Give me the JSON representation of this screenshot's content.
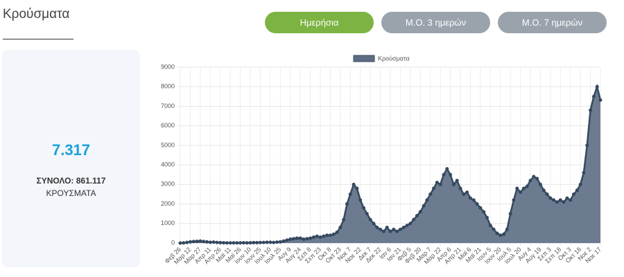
{
  "header": {
    "title": "Κρούσματα"
  },
  "buttons": [
    "Ημερήσια",
    "Μ.Ο. 3 ημερών",
    "Μ.Ο. 7 ημερών"
  ],
  "summary": {
    "value": "7.317",
    "total": "ΣΥΝΟΛΟ: 861.117",
    "label": "ΚΡΟΥΣΜΑΤΑ"
  },
  "chart_data": {
    "type": "area",
    "categories": [
      "Φεβ 26",
      null,
      null,
      "Μαρ 12",
      null,
      null,
      "Μαρ 27",
      null,
      null,
      "Απρ 11",
      null,
      null,
      "Απρ 26",
      null,
      null,
      "Μαϊ 11",
      null,
      null,
      "Μαϊ 26",
      null,
      null,
      "Ιουν 10",
      null,
      null,
      "Ιουν 25",
      null,
      null,
      "Ιουλ 10",
      null,
      null,
      "Ιουλ 25",
      null,
      null,
      "Αυγ 9",
      null,
      null,
      "Αυγ 24",
      null,
      null,
      "Σεπ 8",
      null,
      null,
      "Σεπ 23",
      null,
      null,
      "Οκτ 8",
      null,
      null,
      "Οκτ 23",
      null,
      null,
      "Νοε 7",
      null,
      null,
      "Νοε 22",
      null,
      null,
      "Δεκ 7",
      null,
      null,
      "Δεκ 22",
      null,
      null,
      "Ιαν 6",
      null,
      null,
      "Ιαν 21",
      null,
      null,
      "Φεβ 5",
      null,
      null,
      "Φεβ 20",
      null,
      null,
      "Μαρ 7",
      null,
      null,
      "Μαρ 22",
      null,
      null,
      "Απρ 6",
      null,
      null,
      "Απρ 21",
      null,
      null,
      "Μαϊ 6",
      null,
      null,
      "Μαϊ 21",
      null,
      null,
      "Ιουν 5",
      null,
      null,
      "Ιουν 20",
      null,
      null,
      "Ιουλ 5",
      null,
      null,
      "Ιουλ 20",
      null,
      null,
      "Αυγ 4",
      null,
      null,
      "Αυγ 19",
      null,
      null,
      "Σεπ 3",
      null,
      null,
      "Σεπ 18",
      null,
      null,
      "Οκτ 3",
      null,
      null,
      "Οκτ 18",
      null,
      null,
      "Νοε 2",
      null,
      null,
      "Νοε 17"
    ],
    "series": [
      {
        "name": "Κρούσματα",
        "color": "#34495e",
        "fill": "#5d6d84",
        "values": [
          0,
          10,
          30,
          60,
          80,
          90,
          100,
          80,
          60,
          40,
          50,
          30,
          20,
          15,
          10,
          10,
          10,
          10,
          10,
          15,
          10,
          15,
          20,
          20,
          25,
          30,
          40,
          40,
          30,
          50,
          60,
          100,
          150,
          200,
          220,
          250,
          250,
          200,
          220,
          250,
          300,
          350,
          300,
          350,
          400,
          400,
          450,
          550,
          800,
          1200,
          2000,
          2500,
          3000,
          2800,
          2200,
          1800,
          1500,
          1200,
          1000,
          800,
          700,
          600,
          800,
          600,
          700,
          600,
          700,
          800,
          900,
          1000,
          1200,
          1400,
          1600,
          1900,
          2200,
          2500,
          2800,
          3100,
          3000,
          3500,
          3800,
          3500,
          3000,
          3200,
          2800,
          2500,
          2600,
          2300,
          2200,
          2000,
          1800,
          1600,
          1300,
          900,
          700,
          500,
          400,
          450,
          700,
          1500,
          2200,
          2800,
          2600,
          2800,
          2900,
          3200,
          3400,
          3300,
          3000,
          2700,
          2500,
          2300,
          2200,
          2100,
          2200,
          2100,
          2300,
          2200,
          2500,
          2700,
          3000,
          3600,
          5000,
          6800,
          7500,
          8000,
          7317
        ]
      }
    ],
    "ylim": [
      0,
      9000
    ],
    "yticks": [
      0,
      1000,
      2000,
      3000,
      4000,
      5000,
      6000,
      7000,
      8000,
      9000
    ],
    "grid": true
  }
}
